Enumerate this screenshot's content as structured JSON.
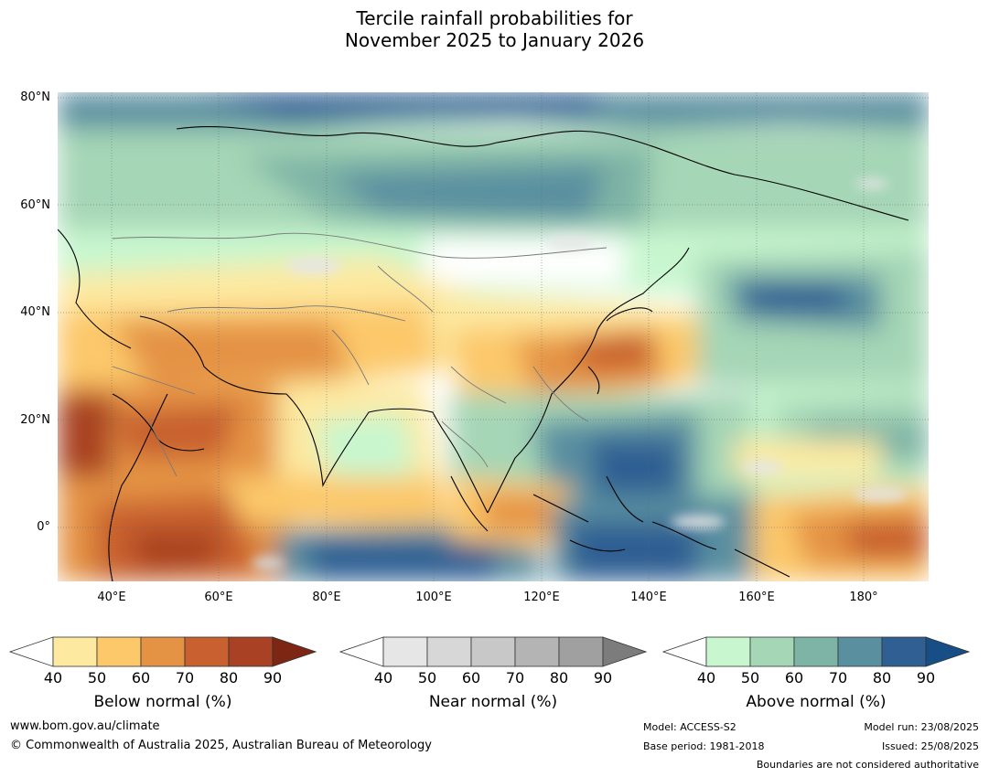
{
  "title": {
    "line1": "Tercile rainfall probabilities for",
    "line2": "November 2025 to January 2026"
  },
  "map": {
    "lat_labels": [
      "80°N",
      "60°N",
      "40°N",
      "20°N",
      "0°"
    ],
    "lon_labels": [
      "40°E",
      "60°E",
      "80°E",
      "100°E",
      "120°E",
      "140°E",
      "160°E",
      "180°"
    ]
  },
  "colorbars": [
    {
      "title": "Below normal (%)",
      "ticks": [
        "40",
        "50",
        "60",
        "70",
        "80",
        "90"
      ],
      "colors": [
        "#ffffff",
        "#fde9a0",
        "#fcc86a",
        "#e49344",
        "#c8612f",
        "#a94224",
        "#7c2613"
      ]
    },
    {
      "title": "Near normal (%)",
      "ticks": [
        "40",
        "50",
        "60",
        "70",
        "80",
        "90"
      ],
      "colors": [
        "#ffffff",
        "#e6e6e6",
        "#d7d7d7",
        "#c8c8c8",
        "#b4b4b4",
        "#a0a0a0",
        "#7c7c7c"
      ]
    },
    {
      "title": "Above normal (%)",
      "ticks": [
        "40",
        "50",
        "60",
        "70",
        "80",
        "90"
      ],
      "colors": [
        "#ffffff",
        "#c8f7cf",
        "#a5d6b6",
        "#7eb4a6",
        "#5a8fa0",
        "#2f5f93",
        "#164e85"
      ]
    }
  ],
  "footer": {
    "website": "www.bom.gov.au/climate",
    "copyright": "© Commonwealth of Australia 2025, Australian Bureau of Meteorology",
    "model": "Model: ACCESS-S2",
    "base_period": "Base period: 1981-2018",
    "model_run": "Model run: 23/08/2025",
    "issued": "Issued: 25/08/2025",
    "boundaries": "Boundaries are not considered authoritative"
  }
}
